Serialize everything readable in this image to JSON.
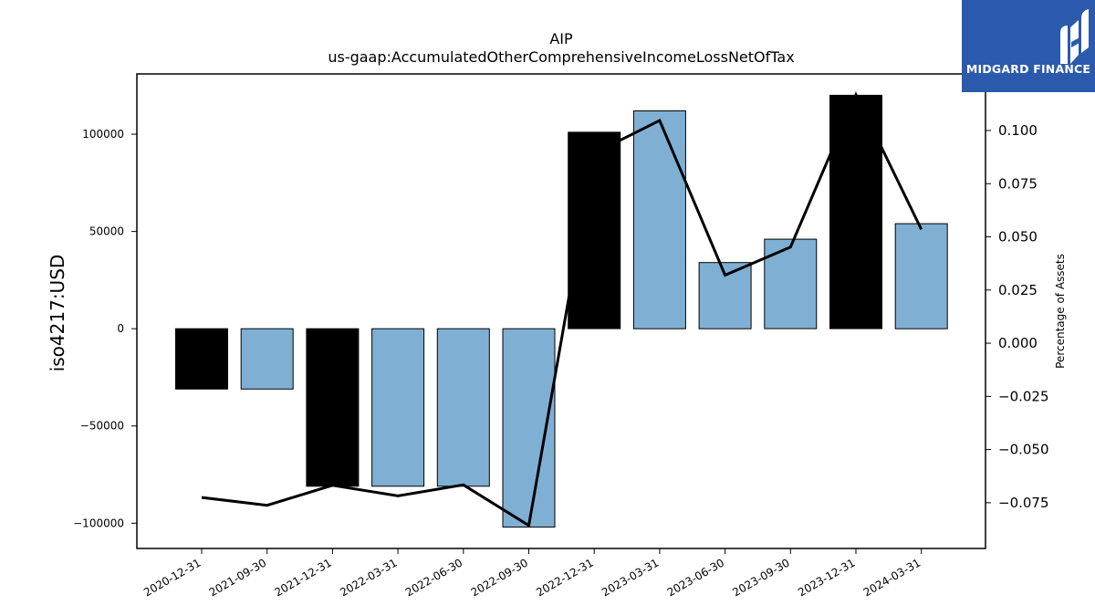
{
  "brand": {
    "name": "MIDGARD FINANCE",
    "logo_bg": "#2b5aad",
    "logo_mark": "stylized-MF-logo"
  },
  "chart_data": {
    "type": "bar",
    "title": "AIP",
    "subtitle": "us-gaap:AccumulatedOtherComprehensiveIncomeLossNetOfTax",
    "ylabel": "iso4217:USD",
    "y2label": "Percentage of Assets",
    "categories": [
      "2020-12-31",
      "2021-09-30",
      "2021-12-31",
      "2022-03-31",
      "2022-06-30",
      "2022-09-30",
      "2022-12-31",
      "2023-03-31",
      "2023-06-30",
      "2023-09-30",
      "2023-12-31",
      "2024-03-31"
    ],
    "series": [
      {
        "type": "bar",
        "values": [
          -31000,
          -31000,
          -81000,
          -81000,
          -81000,
          -102000,
          101000,
          112000,
          34000,
          46000,
          120000,
          54000
        ],
        "colors": [
          "#000000",
          "#7fb0d4",
          "#000000",
          "#7fb0d4",
          "#7fb0d4",
          "#7fb0d4",
          "#000000",
          "#7fb0d4",
          "#7fb0d4",
          "#7fb0d4",
          "#000000",
          "#7fb0d4"
        ]
      },
      {
        "type": "line",
        "axis": "right",
        "color": "#000000",
        "values": [
          -0.0725,
          -0.0762,
          -0.0668,
          -0.0718,
          -0.0666,
          -0.0857,
          0.0893,
          0.1047,
          0.032,
          0.0452,
          0.1168,
          0.0535
        ]
      }
    ],
    "ylim": [
      -113000,
      131000
    ],
    "y2lim": [
      -0.0965,
      0.1266
    ],
    "yticks": [
      -100000,
      -50000,
      0,
      50000,
      100000
    ],
    "ytick_labels": [
      "−100000",
      "−50000",
      "0",
      "50000",
      "100000"
    ],
    "y2ticks": [
      -0.075,
      -0.05,
      -0.025,
      0.0,
      0.025,
      0.05,
      0.075,
      0.1
    ],
    "y2tick_labels": [
      "−0.075",
      "−0.050",
      "−0.025",
      "0.000",
      "0.025",
      "0.050",
      "0.075",
      "0.100"
    ],
    "grid": false,
    "legend": "none"
  }
}
